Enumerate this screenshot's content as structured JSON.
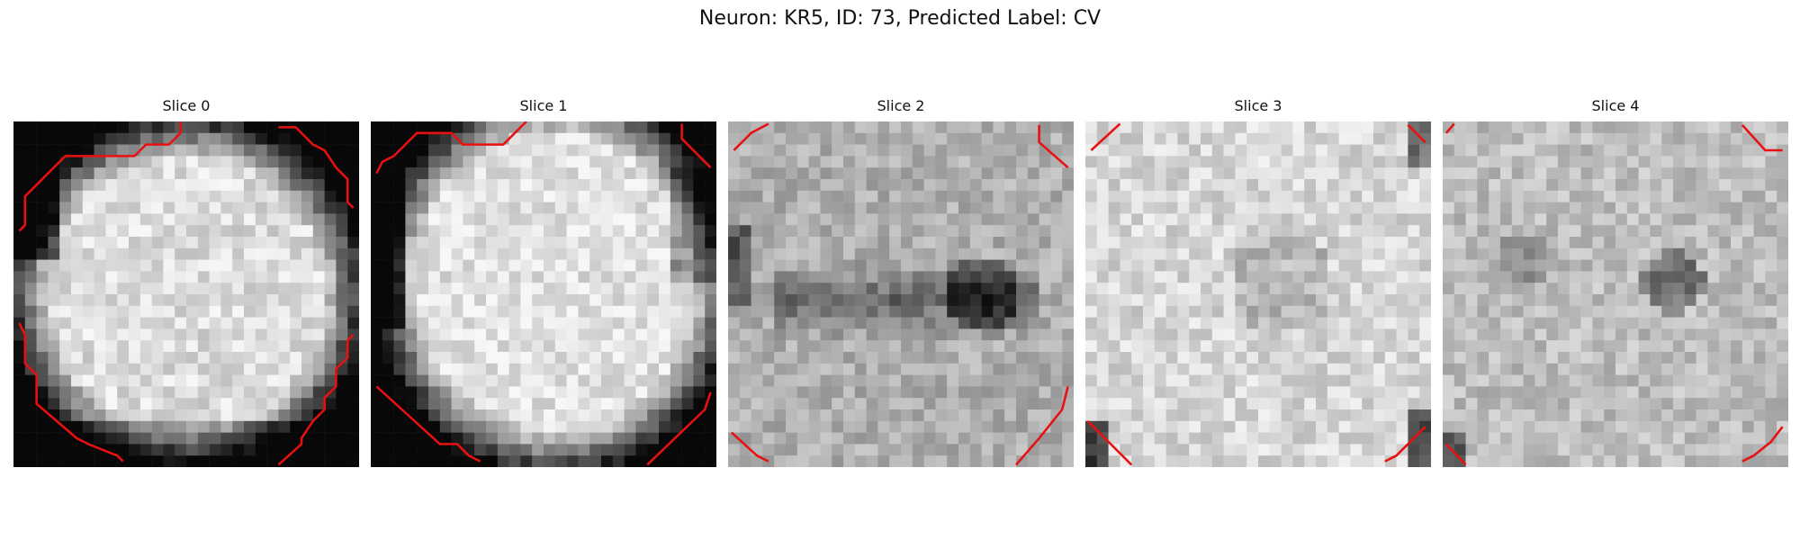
{
  "figure": {
    "title": "Neuron: KR5, ID: 73, Predicted Label: CV"
  },
  "panels": [
    {
      "title": "Slice 0"
    },
    {
      "title": "Slice 1"
    },
    {
      "title": "Slice 2"
    },
    {
      "title": "Slice 3"
    },
    {
      "title": "Slice 4"
    }
  ],
  "colors": {
    "contour": "#e81010",
    "background": "#ffffff"
  }
}
